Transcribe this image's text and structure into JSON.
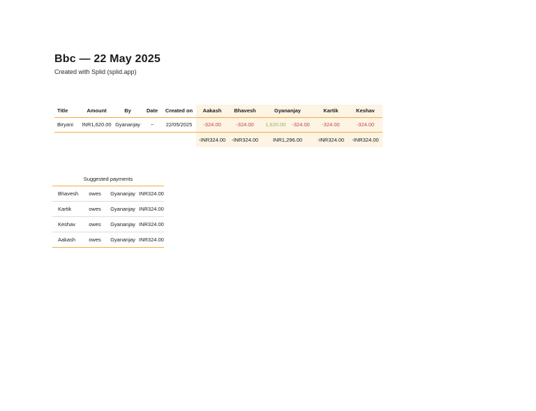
{
  "header": {
    "title": "Bbc — 22 May 2025",
    "subtitle": "Created with Splid (splid.app)"
  },
  "expenses": {
    "columns": [
      "Title",
      "Amount",
      "By",
      "Date",
      "Created on",
      "Aakash",
      "Bhavesh",
      "Gyananjay",
      "Kartik",
      "Keshav"
    ],
    "row": {
      "title": "Biryani",
      "amount": "INR1,620.00",
      "by": "Gyananjay",
      "date": "~",
      "created_on": "22/05/2025",
      "aakash": "-324.00",
      "bhavesh": "-324.00",
      "gyananjay_paid": "1,620.00",
      "gyananjay_share": "-324.00",
      "kartik": "-324.00",
      "keshav": "-324.00"
    },
    "totals": {
      "aakash": "-INR324.00",
      "bhavesh": "-INR324.00",
      "gyananjay": "INR1,296.00",
      "kartik": "-INR324.00",
      "keshav": "-INR324.00"
    }
  },
  "suggested": {
    "title": "Suggested payments",
    "rows": [
      {
        "debtor": "Bhavesh",
        "verb": "owes",
        "creditor": "Gyananjay",
        "amount": "INR324.00"
      },
      {
        "debtor": "Kartik",
        "verb": "owes",
        "creditor": "Gyananjay",
        "amount": "INR324.00"
      },
      {
        "debtor": "Keshav",
        "verb": "owes",
        "creditor": "Gyananjay",
        "amount": "INR324.00"
      },
      {
        "debtor": "Aakash",
        "verb": "owes",
        "creditor": "Gyananjay",
        "amount": "INR324.00"
      }
    ]
  },
  "colors": {
    "accent_orange": "#F5A93C",
    "person_column_bg": "#FDF4E4",
    "negative_red": "#C4463C",
    "positive_green": "#8FB65F",
    "row_divider_gray": "#DCDCDC"
  }
}
